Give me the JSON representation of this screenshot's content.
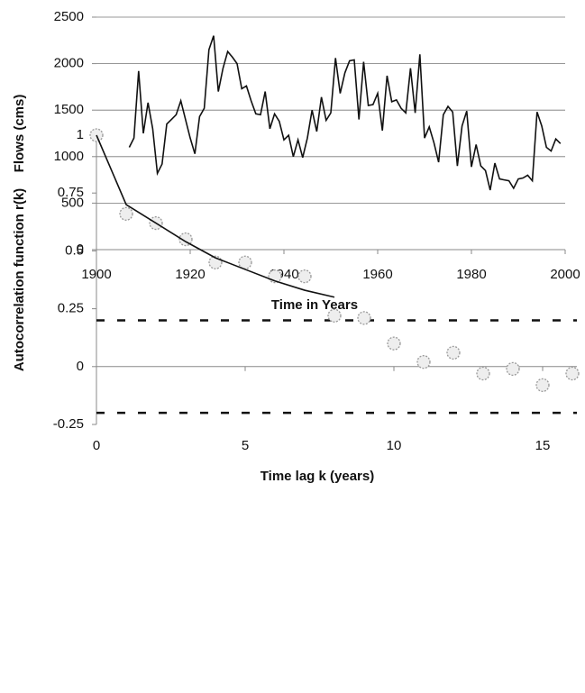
{
  "chart_data": [
    {
      "type": "line",
      "ylabel": "Flows (cms)",
      "xlabel": "Time in Years",
      "xlim": [
        1900,
        2000
      ],
      "xticks": [
        1900,
        1920,
        1940,
        1960,
        1980,
        2000
      ],
      "ylim": [
        0,
        2500
      ],
      "yticks": [
        0,
        500,
        1000,
        1500,
        2000,
        2500
      ],
      "grid": true,
      "color": "#111111",
      "x": [
        1907,
        1908,
        1909,
        1910,
        1911,
        1912,
        1913,
        1914,
        1915,
        1916,
        1917,
        1918,
        1919,
        1920,
        1921,
        1922,
        1923,
        1924,
        1925,
        1926,
        1927,
        1928,
        1929,
        1930,
        1931,
        1932,
        1933,
        1934,
        1935,
        1936,
        1937,
        1938,
        1939,
        1940,
        1941,
        1942,
        1943,
        1944,
        1945,
        1946,
        1947,
        1948,
        1949,
        1950,
        1951,
        1952,
        1953,
        1954,
        1955,
        1956,
        1957,
        1958,
        1959,
        1960,
        1961,
        1962,
        1963,
        1964,
        1965,
        1966,
        1967,
        1968,
        1969,
        1970,
        1971,
        1972,
        1973,
        1974,
        1975,
        1976,
        1977,
        1978,
        1979,
        1980,
        1981,
        1982,
        1983,
        1984,
        1985,
        1986,
        1987,
        1988,
        1989,
        1990,
        1991,
        1992,
        1993,
        1994,
        1995,
        1996,
        1997,
        1998,
        1999
      ],
      "values": [
        1100,
        1200,
        1920,
        1250,
        1580,
        1300,
        820,
        920,
        1350,
        1400,
        1450,
        1600,
        1400,
        1200,
        1030,
        1430,
        1520,
        2150,
        2300,
        1700,
        1950,
        2130,
        2070,
        2000,
        1730,
        1760,
        1600,
        1460,
        1450,
        1700,
        1300,
        1460,
        1380,
        1180,
        1230,
        1000,
        1180,
        990,
        1200,
        1500,
        1270,
        1640,
        1390,
        1470,
        2060,
        1680,
        1900,
        2030,
        2040,
        1400,
        2020,
        1550,
        1560,
        1680,
        1280,
        1870,
        1590,
        1610,
        1520,
        1470,
        1950,
        1470,
        2100,
        1200,
        1320,
        1150,
        940,
        1450,
        1540,
        1480,
        900,
        1330,
        1490,
        890,
        1130,
        900,
        850,
        640,
        930,
        760,
        750,
        740,
        660,
        760,
        770,
        800,
        740,
        1480,
        1330,
        1100,
        1060,
        1190,
        1140
      ]
    },
    {
      "type": "scatter",
      "ylabel": "Autocorrelation function r(k)",
      "xlabel": "Time lag k (years)",
      "xlim": [
        0,
        16
      ],
      "xticks": [
        0,
        5,
        10,
        15
      ],
      "ylim": [
        -0.25,
        1
      ],
      "yticks": [
        -0.25,
        0,
        0.25,
        0.5,
        0.75,
        1
      ],
      "grid": false,
      "x": [
        0,
        1,
        2,
        3,
        4,
        5,
        6,
        7,
        8,
        9,
        10,
        11,
        12,
        13,
        14,
        15,
        16
      ],
      "series": [
        {
          "style": "points",
          "color": "#999999",
          "values": [
            1,
            0.66,
            0.62,
            0.55,
            0.45,
            0.45,
            0.39,
            0.39,
            0.22,
            0.21,
            0.1,
            0.02,
            0.06,
            -0.03,
            -0.01,
            -0.08,
            -0.03
          ]
        },
        {
          "style": "line",
          "color": "#111111",
          "x": [
            0,
            1,
            2,
            3,
            4,
            5,
            6,
            7,
            8
          ],
          "values": [
            1,
            0.7,
            0.62,
            0.54,
            0.47,
            0.42,
            0.37,
            0.33,
            0.3
          ]
        }
      ],
      "reference_lines": [
        0.2,
        -0.2
      ]
    }
  ]
}
